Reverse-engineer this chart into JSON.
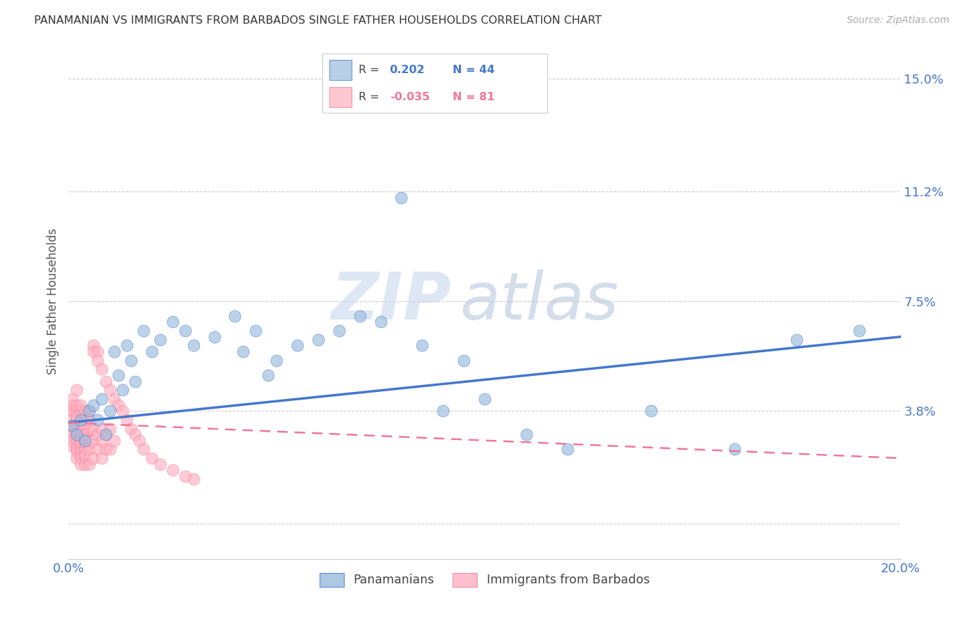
{
  "title": "PANAMANIAN VS IMMIGRANTS FROM BARBADOS SINGLE FATHER HOUSEHOLDS CORRELATION CHART",
  "source": "Source: ZipAtlas.com",
  "ylabel": "Single Father Households",
  "xlim": [
    0.0,
    0.2
  ],
  "ylim": [
    -0.012,
    0.162
  ],
  "ytick_positions": [
    0.0,
    0.038,
    0.075,
    0.112,
    0.15
  ],
  "yticklabels_right": [
    "",
    "3.8%",
    "7.5%",
    "11.2%",
    "15.0%"
  ],
  "xticklabels": [
    "0.0%",
    "",
    "",
    "",
    "20.0%"
  ],
  "grid_color": "#cccccc",
  "background_color": "#ffffff",
  "color_blue": "#99BBDD",
  "color_pink": "#FFB0C0",
  "color_blue_line": "#4477CC",
  "color_pink_line": "#EE7799",
  "watermark_zip": "ZIP",
  "watermark_atlas": "atlas",
  "legend_label1": "Panamanians",
  "legend_label2": "Immigrants from Barbados",
  "pan_x": [
    0.001,
    0.002,
    0.003,
    0.004,
    0.005,
    0.006,
    0.007,
    0.008,
    0.009,
    0.01,
    0.011,
    0.012,
    0.013,
    0.014,
    0.015,
    0.016,
    0.018,
    0.02,
    0.022,
    0.025,
    0.028,
    0.03,
    0.035,
    0.04,
    0.042,
    0.045,
    0.048,
    0.05,
    0.055,
    0.06,
    0.065,
    0.07,
    0.075,
    0.08,
    0.085,
    0.09,
    0.095,
    0.1,
    0.11,
    0.12,
    0.14,
    0.16,
    0.175,
    0.19
  ],
  "pan_y": [
    0.033,
    0.03,
    0.035,
    0.028,
    0.038,
    0.04,
    0.035,
    0.042,
    0.03,
    0.038,
    0.058,
    0.05,
    0.045,
    0.06,
    0.055,
    0.048,
    0.065,
    0.058,
    0.062,
    0.068,
    0.065,
    0.06,
    0.063,
    0.07,
    0.058,
    0.065,
    0.05,
    0.055,
    0.06,
    0.062,
    0.065,
    0.07,
    0.068,
    0.11,
    0.06,
    0.038,
    0.055,
    0.042,
    0.03,
    0.025,
    0.038,
    0.025,
    0.062,
    0.065
  ],
  "bar_x": [
    0.001,
    0.001,
    0.001,
    0.001,
    0.001,
    0.001,
    0.001,
    0.001,
    0.001,
    0.001,
    0.001,
    0.002,
    0.002,
    0.002,
    0.002,
    0.002,
    0.002,
    0.002,
    0.002,
    0.002,
    0.002,
    0.002,
    0.002,
    0.003,
    0.003,
    0.003,
    0.003,
    0.003,
    0.003,
    0.003,
    0.003,
    0.003,
    0.003,
    0.003,
    0.004,
    0.004,
    0.004,
    0.004,
    0.004,
    0.004,
    0.004,
    0.004,
    0.005,
    0.005,
    0.005,
    0.005,
    0.005,
    0.005,
    0.006,
    0.006,
    0.006,
    0.006,
    0.006,
    0.007,
    0.007,
    0.007,
    0.007,
    0.008,
    0.008,
    0.008,
    0.008,
    0.009,
    0.009,
    0.009,
    0.01,
    0.01,
    0.01,
    0.011,
    0.011,
    0.012,
    0.013,
    0.014,
    0.015,
    0.016,
    0.017,
    0.018,
    0.02,
    0.022,
    0.025,
    0.028,
    0.03
  ],
  "bar_y": [
    0.038,
    0.04,
    0.042,
    0.035,
    0.038,
    0.032,
    0.033,
    0.03,
    0.03,
    0.028,
    0.026,
    0.038,
    0.04,
    0.035,
    0.036,
    0.032,
    0.03,
    0.028,
    0.026,
    0.025,
    0.024,
    0.022,
    0.045,
    0.038,
    0.04,
    0.035,
    0.032,
    0.03,
    0.028,
    0.026,
    0.025,
    0.024,
    0.022,
    0.02,
    0.038,
    0.035,
    0.032,
    0.03,
    0.028,
    0.025,
    0.023,
    0.02,
    0.038,
    0.035,
    0.032,
    0.028,
    0.025,
    0.02,
    0.06,
    0.058,
    0.032,
    0.028,
    0.022,
    0.058,
    0.055,
    0.03,
    0.025,
    0.052,
    0.032,
    0.028,
    0.022,
    0.048,
    0.03,
    0.025,
    0.045,
    0.032,
    0.025,
    0.042,
    0.028,
    0.04,
    0.038,
    0.035,
    0.032,
    0.03,
    0.028,
    0.025,
    0.022,
    0.02,
    0.018,
    0.016,
    0.015
  ]
}
